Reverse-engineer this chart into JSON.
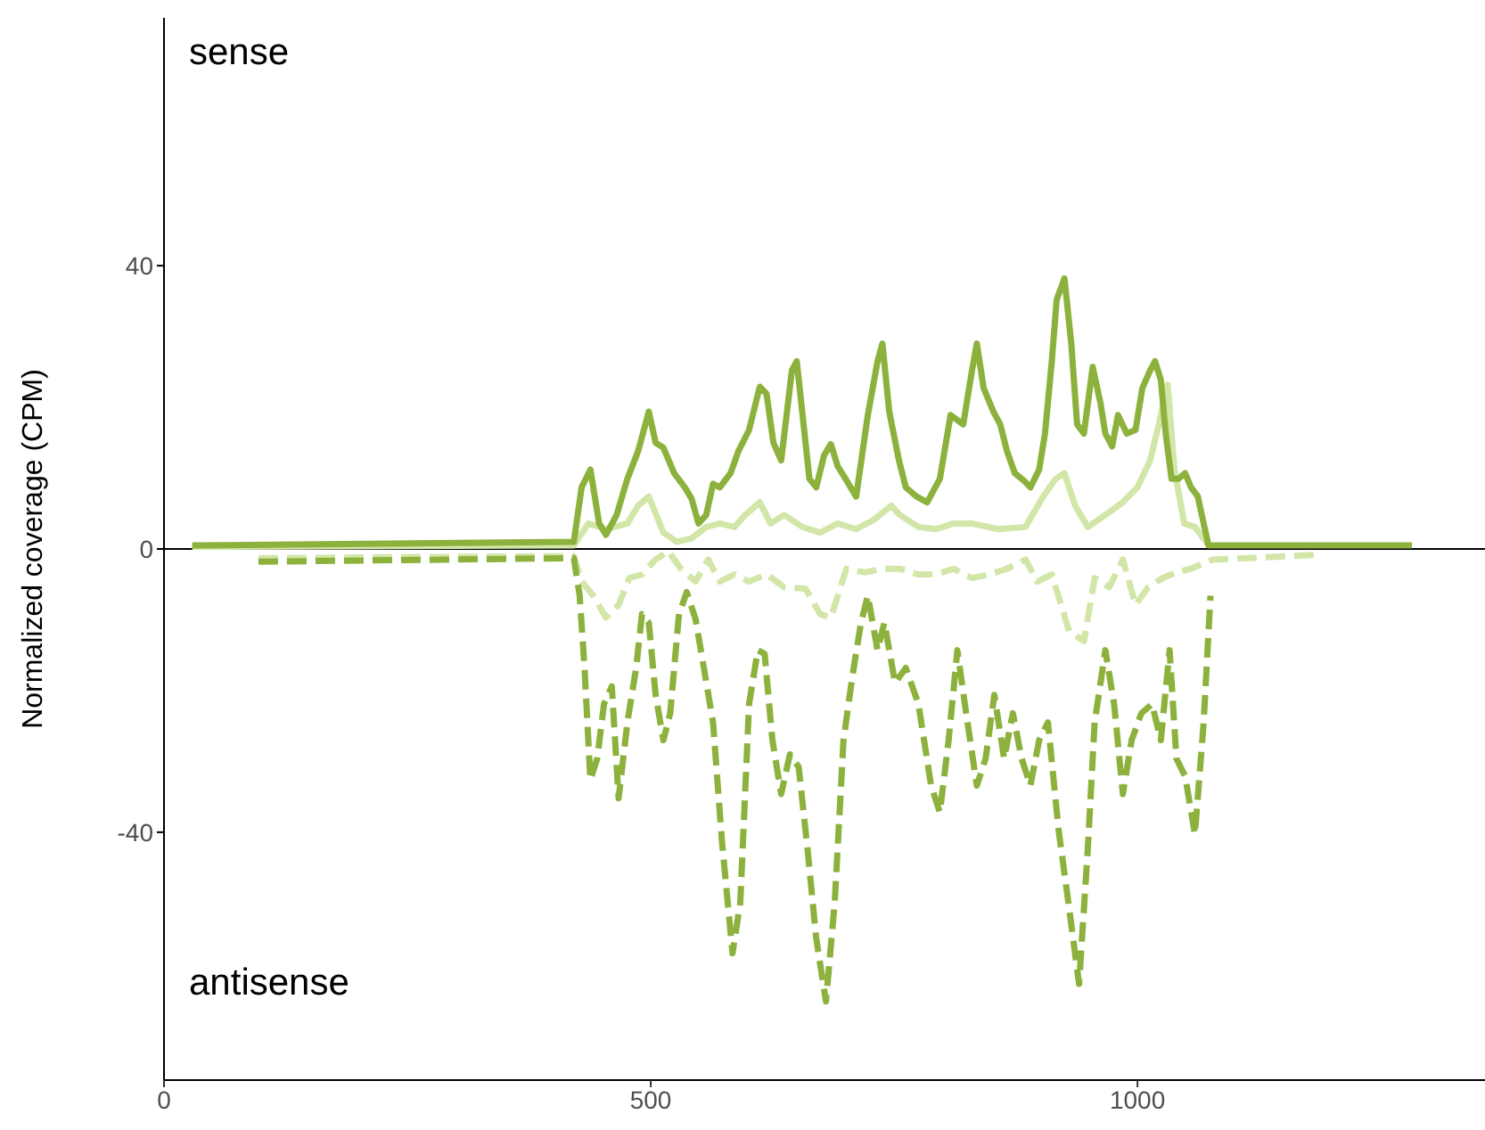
{
  "chart_data": {
    "type": "line",
    "ylabel": "Normalized coverage (CPM)",
    "xlim": [
      0,
      1357
    ],
    "xticks": [
      0,
      500,
      1000
    ],
    "ylim": [
      -75,
      75
    ],
    "yticks": [
      -40,
      0,
      40
    ],
    "grid": false,
    "marker": "none",
    "ref_lines": [
      {
        "axis": "y",
        "value": 0,
        "color": "#000000"
      }
    ],
    "annotations": [
      "sense",
      "antisense"
    ],
    "series": [
      {
        "color": "#d2e6a8",
        "line_style": "solid",
        "x": [
          29,
          421,
          436,
          454,
          476,
          487,
          498,
          513,
          527,
          542,
          557,
          571,
          586,
          597,
          612,
          623,
          637,
          656,
          674,
          692,
          711,
          729,
          747,
          756,
          775,
          793,
          811,
          830,
          857,
          885,
          903,
          916,
          925,
          936,
          949,
          967,
          985,
          1000,
          1013,
          1022,
          1031,
          1038,
          1048,
          1059,
          1073
        ],
        "values": [
          0.3,
          0.5,
          3.6,
          2.8,
          3.6,
          6.1,
          7.4,
          2.3,
          1,
          1.5,
          3.1,
          3.6,
          3.1,
          4.8,
          6.6,
          3.6,
          4.8,
          3.1,
          2.3,
          3.6,
          2.8,
          4.1,
          6.1,
          4.8,
          3.1,
          2.8,
          3.6,
          3.6,
          2.8,
          3.1,
          7.4,
          9.9,
          10.7,
          6.1,
          3.1,
          4.8,
          6.6,
          8.7,
          12.5,
          17.6,
          23.2,
          11.2,
          3.6,
          3.1,
          0.5
        ]
      },
      {
        "color": "#d2e6a8",
        "line_style": "dashed",
        "x": [
          97,
          421,
          429,
          441,
          454,
          467,
          478,
          491,
          505,
          518,
          531,
          546,
          559,
          571,
          586,
          601,
          619,
          637,
          659,
          674,
          685,
          701,
          720,
          738,
          756,
          775,
          793,
          811,
          830,
          848,
          866,
          885,
          897,
          912,
          930,
          945,
          956,
          971,
          985,
          998,
          1011,
          1026,
          1040,
          1055,
          1077,
          1114,
          1187
        ],
        "values": [
          -1.3,
          -1,
          -4.6,
          -6.6,
          -9.7,
          -7.9,
          -4.1,
          -3.6,
          -1.5,
          -0.3,
          -2.8,
          -4.6,
          -1.5,
          -4.6,
          -3.6,
          -4.6,
          -3.6,
          -5.4,
          -5.6,
          -9.2,
          -9.7,
          -2.8,
          -3.3,
          -2.8,
          -2.8,
          -3.6,
          -3.6,
          -2.8,
          -4.1,
          -3.6,
          -2.8,
          -1.5,
          -4.6,
          -3.6,
          -11.7,
          -13,
          -4.1,
          -5.4,
          -1.5,
          -7.9,
          -5.4,
          -4.1,
          -3.3,
          -2.8,
          -1.5,
          -1.3,
          -0.8
        ]
      },
      {
        "color": "#8cb13c",
        "line_style": "solid",
        "x": [
          29,
          421,
          429,
          438,
          447,
          454,
          465,
          476,
          487,
          498,
          505,
          513,
          524,
          535,
          542,
          549,
          557,
          564,
          571,
          582,
          590,
          601,
          612,
          619,
          626,
          634,
          645,
          650,
          656,
          663,
          670,
          678,
          685,
          692,
          701,
          711,
          723,
          733,
          738,
          745,
          755,
          762,
          773,
          784,
          797,
          808,
          821,
          830,
          835,
          842,
          852,
          859,
          866,
          874,
          883,
          890,
          899,
          905,
          912,
          917,
          925,
          932,
          938,
          945,
          954,
          962,
          967,
          974,
          980,
          989,
          998,
          1005,
          1013,
          1018,
          1024,
          1029,
          1035,
          1042,
          1049,
          1055,
          1062,
          1068,
          1073,
          1282
        ],
        "values": [
          0.5,
          1,
          8.7,
          11.2,
          3.6,
          2,
          4.8,
          9.9,
          13.8,
          19.4,
          15,
          14.3,
          10.7,
          8.7,
          7.1,
          3.6,
          4.8,
          9.2,
          8.7,
          10.7,
          13.8,
          16.8,
          22.9,
          21.9,
          15,
          12.5,
          25.2,
          26.5,
          18.9,
          9.9,
          8.7,
          13.2,
          14.8,
          11.7,
          9.7,
          7.4,
          18.9,
          26.5,
          29,
          19.4,
          12.5,
          8.7,
          7.4,
          6.6,
          9.9,
          18.9,
          17.6,
          25.2,
          29,
          22.7,
          19.4,
          17.6,
          13.8,
          10.7,
          9.7,
          8.7,
          11.2,
          16.3,
          26.5,
          35.2,
          38.2,
          29,
          17.6,
          16.3,
          25.7,
          20.6,
          16.3,
          14.5,
          18.9,
          16.3,
          16.8,
          22.7,
          25.2,
          26.5,
          23.9,
          16.3,
          9.9,
          9.9,
          10.7,
          8.7,
          7.4,
          3.6,
          0.5,
          0.5
        ]
      },
      {
        "color": "#8cb13c",
        "line_style": "dashed",
        "x": [
          97,
          421,
          427,
          432,
          438,
          445,
          452,
          460,
          467,
          476,
          485,
          491,
          498,
          505,
          513,
          520,
          529,
          537,
          546,
          553,
          564,
          573,
          584,
          592,
          601,
          610,
          617,
          625,
          634,
          643,
          652,
          661,
          670,
          680,
          689,
          698,
          707,
          716,
          723,
          733,
          740,
          751,
          762,
          775,
          788,
          797,
          806,
          815,
          824,
          835,
          844,
          853,
          863,
          872,
          881,
          890,
          899,
          908,
          919,
          929,
          940,
          949,
          956,
          967,
          976,
          985,
          994,
          1004,
          1015,
          1024,
          1033,
          1040,
          1049,
          1059,
          1068,
          1075
        ],
        "values": [
          -1.8,
          -1.3,
          -6.6,
          -16.8,
          -32.6,
          -29.6,
          -21.9,
          -19.4,
          -35.2,
          -24.5,
          -16.8,
          -9.2,
          -10.4,
          -20.6,
          -27,
          -23.2,
          -9.2,
          -6.1,
          -9.9,
          -15.5,
          -24.5,
          -41,
          -57.1,
          -49.9,
          -21.9,
          -14.3,
          -14.8,
          -27,
          -34.6,
          -29,
          -30.8,
          -42.3,
          -55,
          -63.9,
          -49.9,
          -27,
          -18.1,
          -10.4,
          -6.6,
          -14.3,
          -10.4,
          -18.9,
          -16.8,
          -21.9,
          -33.4,
          -37.2,
          -27,
          -14.3,
          -23.2,
          -33.4,
          -29.6,
          -20.6,
          -29.6,
          -23.2,
          -29.6,
          -33.4,
          -27,
          -24.5,
          -39.7,
          -49.9,
          -61.4,
          -42.3,
          -24.5,
          -14.3,
          -21.9,
          -34.6,
          -27,
          -23.2,
          -21.9,
          -27,
          -14.3,
          -29.6,
          -32.1,
          -40.3,
          -24.5,
          -6.6
        ]
      }
    ]
  }
}
